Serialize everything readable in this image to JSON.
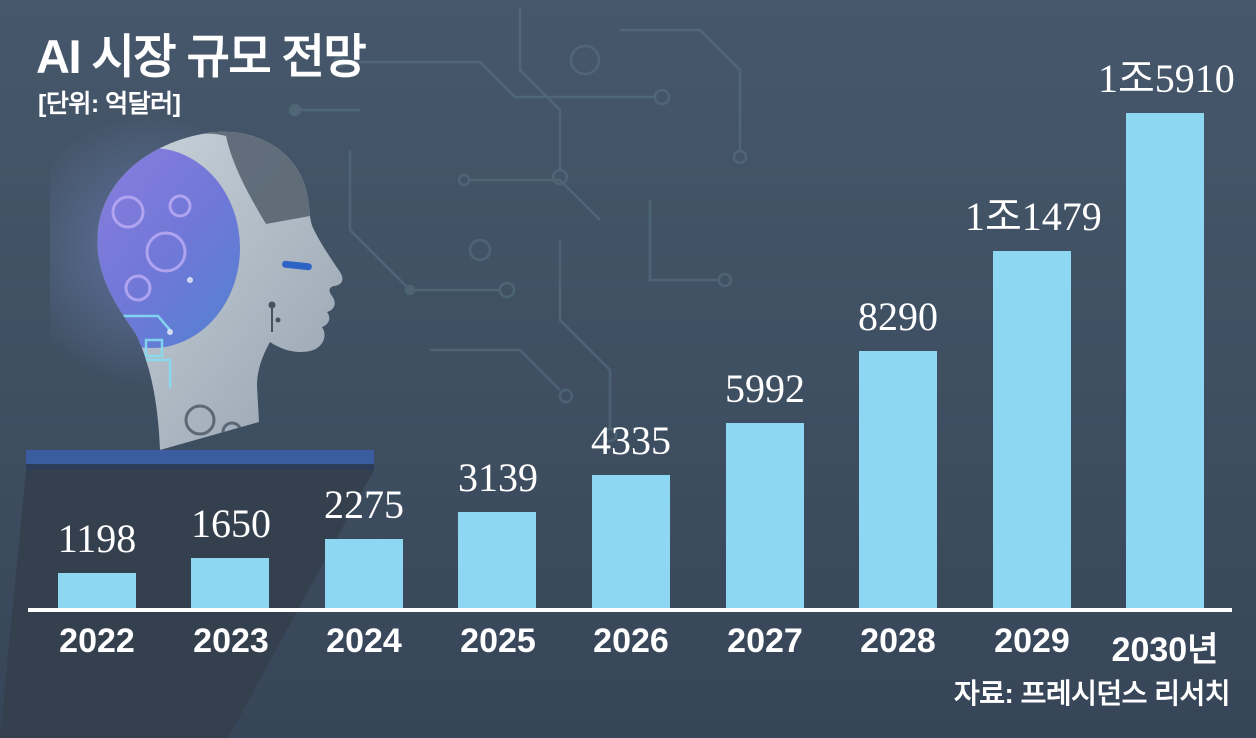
{
  "header": {
    "title": "AI 시장 규모 전망",
    "unit_label": "[단위: 억달러]"
  },
  "footer": {
    "source": "자료: 프레시던스 리서치"
  },
  "colors": {
    "background_top": "#47576b",
    "background_bottom": "#364557",
    "bar": "#8dd7f3",
    "text": "#ffffff",
    "baseline": "#ffffff",
    "circuit_trace": "#5d7b8a",
    "pedestal_shadow": "#35404f",
    "platform_blue": "#3b5c9e",
    "brain_purple": "#8a7ae0",
    "brain_blue": "#4d7ed2"
  },
  "chart_data": {
    "type": "bar",
    "title": "AI 시장 규모 전망",
    "unit": "억달러",
    "categories": [
      "2022",
      "2023",
      "2024",
      "2025",
      "2026",
      "2027",
      "2028",
      "2029",
      "2030년"
    ],
    "values": [
      1198,
      1650,
      2275,
      3139,
      4335,
      5992,
      8290,
      11479,
      15910
    ],
    "value_labels": [
      "1198",
      "1650",
      "2275",
      "3139",
      "4335",
      "5992",
      "8290",
      "1조1479",
      "1조5910"
    ],
    "xlabel": "",
    "ylabel": "",
    "ylim": [
      0,
      15910
    ],
    "grid": false,
    "legend": "none",
    "source": "프레시던스 리서치"
  }
}
